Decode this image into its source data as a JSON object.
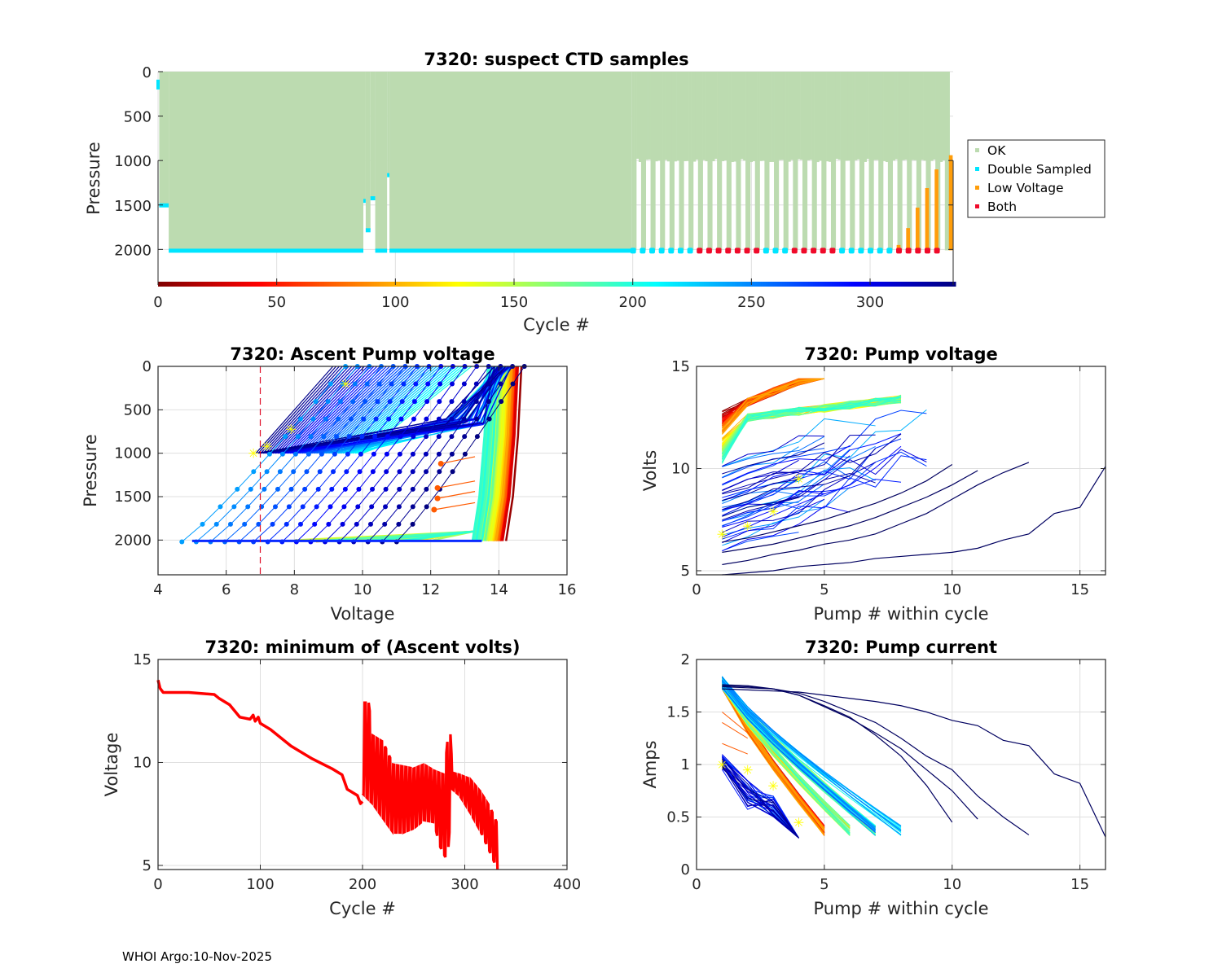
{
  "footer": "WHOI Argo:10-Nov-2025",
  "chart_data": [
    {
      "id": "suspect-ctd",
      "type": "scatter",
      "title": "7320: suspect CTD samples",
      "xlabel": "Cycle #",
      "ylabel": "Pressure",
      "xlim": [
        0,
        335
      ],
      "ylim": [
        2400,
        0
      ],
      "xticks": [
        0,
        50,
        100,
        150,
        200,
        250,
        300
      ],
      "yticks": [
        0,
        500,
        1000,
        1500,
        2000
      ],
      "grid": true,
      "legend": {
        "placement": "outside-right",
        "entries": [
          {
            "label": "OK",
            "color": "#bcdbb0"
          },
          {
            "label": "Double Sampled",
            "color": "#00e5ff"
          },
          {
            "label": "Low Voltage",
            "color": "#ff9d0a"
          },
          {
            "label": "Both",
            "color": "#f00a2a"
          }
        ]
      },
      "profile_depth_segments": [
        {
          "cycles": [
            1,
            4
          ],
          "max_pressure": 1500
        },
        {
          "cycles": [
            5,
            86
          ],
          "max_pressure": 2010
        },
        {
          "cycles": [
            87,
            87
          ],
          "max_pressure": 1450
        },
        {
          "cycles": [
            88,
            89
          ],
          "max_pressure": 1780
        },
        {
          "cycles": [
            90,
            91
          ],
          "max_pressure": 1420
        },
        {
          "cycles": [
            92,
            96
          ],
          "max_pressure": 2010
        },
        {
          "cycles": [
            97,
            97
          ],
          "max_pressure": 1160
        },
        {
          "cycles": [
            98,
            199
          ],
          "max_pressure": 2010
        }
      ],
      "alternating_profiles": {
        "start_cycle": 200,
        "end_cycle": 333,
        "period": 4,
        "shallow_pressure": 1000,
        "deep_pressure": 2010
      },
      "flagged_bottom_points": [
        {
          "cycle": 200,
          "flag": "Double Sampled"
        },
        {
          "cycle": 204,
          "flag": "Double Sampled"
        },
        {
          "cycle": 208,
          "flag": "Double Sampled"
        },
        {
          "cycle": 212,
          "flag": "Double Sampled"
        },
        {
          "cycle": 216,
          "flag": "Double Sampled"
        },
        {
          "cycle": 220,
          "flag": "Double Sampled"
        },
        {
          "cycle": 224,
          "flag": "Double Sampled"
        },
        {
          "cycle": 228,
          "flag": "Both"
        },
        {
          "cycle": 232,
          "flag": "Both"
        },
        {
          "cycle": 236,
          "flag": "Both"
        },
        {
          "cycle": 240,
          "flag": "Both"
        },
        {
          "cycle": 244,
          "flag": "Both"
        },
        {
          "cycle": 248,
          "flag": "Both"
        },
        {
          "cycle": 252,
          "flag": "Both"
        },
        {
          "cycle": 256,
          "flag": "Double Sampled"
        },
        {
          "cycle": 260,
          "flag": "Double Sampled"
        },
        {
          "cycle": 264,
          "flag": "Double Sampled"
        },
        {
          "cycle": 268,
          "flag": "Both"
        },
        {
          "cycle": 272,
          "flag": "Both"
        },
        {
          "cycle": 276,
          "flag": "Both"
        },
        {
          "cycle": 280,
          "flag": "Both"
        },
        {
          "cycle": 284,
          "flag": "Both"
        },
        {
          "cycle": 288,
          "flag": "Double Sampled"
        },
        {
          "cycle": 292,
          "flag": "Double Sampled"
        },
        {
          "cycle": 296,
          "flag": "Double Sampled"
        },
        {
          "cycle": 300,
          "flag": "Double Sampled"
        },
        {
          "cycle": 304,
          "flag": "Double Sampled"
        },
        {
          "cycle": 308,
          "flag": "Double Sampled"
        },
        {
          "cycle": 312,
          "flag": "Both"
        },
        {
          "cycle": 316,
          "flag": "Both"
        },
        {
          "cycle": 320,
          "flag": "Both"
        },
        {
          "cycle": 324,
          "flag": "Both"
        },
        {
          "cycle": 328,
          "flag": "Both"
        }
      ],
      "low_voltage_columns": [
        {
          "cycle": 312,
          "top_pressure": 1950
        },
        {
          "cycle": 316,
          "top_pressure": 1760
        },
        {
          "cycle": 320,
          "top_pressure": 1530
        },
        {
          "cycle": 324,
          "top_pressure": 1310
        },
        {
          "cycle": 328,
          "top_pressure": 1100
        },
        {
          "cycle": 334,
          "top_pressure": 940
        }
      ],
      "colorbar": {
        "range": [
          0,
          335
        ],
        "colormap": "jet"
      }
    },
    {
      "id": "ascent-pump-voltage",
      "type": "line",
      "title": "7320: Ascent Pump voltage",
      "xlabel": "Voltage",
      "ylabel": "Pressure",
      "xlim": [
        4,
        16
      ],
      "ylim": [
        2400,
        0
      ],
      "xticks": [
        4,
        6,
        8,
        10,
        12,
        14,
        16
      ],
      "yticks": [
        0,
        500,
        1000,
        1500,
        2000
      ],
      "grid": true,
      "threshold_line": {
        "x": 7,
        "color": "#e0102a",
        "style": "dashed"
      },
      "series_description": "One ascent per cycle, colored by cycle number (jet colormap); early cycles near 14.3 V, late cycles degrade toward 4.7 V",
      "highlighted_points": [
        {
          "x": 9.5,
          "y": 200
        },
        {
          "x": 7.9,
          "y": 720
        },
        {
          "x": 7.2,
          "y": 920
        },
        {
          "x": 6.8,
          "y": 1000
        }
      ]
    },
    {
      "id": "pump-voltage",
      "type": "line",
      "title": "7320: Pump voltage",
      "xlabel": "Pump # within cycle",
      "ylabel": "Volts",
      "xlim": [
        0,
        16
      ],
      "ylim": [
        4.8,
        15
      ],
      "xticks": [
        0,
        5,
        10,
        15
      ],
      "yticks": [
        5,
        10,
        15
      ],
      "grid": true,
      "example_late_series": [
        {
          "x": [
            1,
            2,
            3,
            4,
            5,
            6,
            7,
            8,
            9,
            10,
            11,
            12,
            13,
            14,
            15,
            16
          ],
          "y": [
            4.8,
            4.9,
            5.0,
            5.2,
            5.3,
            5.4,
            5.6,
            5.7,
            5.8,
            5.9,
            6.1,
            6.5,
            6.8,
            7.8,
            8.1,
            10.1
          ]
        },
        {
          "x": [
            1,
            2,
            3,
            4,
            5,
            6,
            7,
            8,
            9,
            10,
            11,
            12,
            13
          ],
          "y": [
            5.3,
            5.5,
            5.8,
            6.0,
            6.3,
            6.5,
            6.8,
            7.3,
            7.8,
            8.5,
            9.2,
            9.8,
            10.3
          ]
        },
        {
          "x": [
            1,
            2,
            3,
            4,
            5,
            6,
            7,
            8,
            9,
            10,
            11
          ],
          "y": [
            5.9,
            6.1,
            6.3,
            6.6,
            6.9,
            7.2,
            7.6,
            8.1,
            8.6,
            9.2,
            9.9
          ]
        },
        {
          "x": [
            1,
            2,
            3,
            4,
            5,
            6,
            7,
            8,
            9,
            10
          ],
          "y": [
            6.4,
            6.6,
            6.9,
            7.2,
            7.5,
            7.9,
            8.3,
            8.8,
            9.4,
            10.2
          ]
        }
      ],
      "highlighted_points": [
        {
          "x": 1,
          "y": 6.8
        },
        {
          "x": 2,
          "y": 7.2
        },
        {
          "x": 3,
          "y": 7.9
        },
        {
          "x": 4,
          "y": 9.5
        }
      ]
    },
    {
      "id": "min-ascent-volts",
      "type": "line",
      "title": "7320: minimum of (Ascent volts)",
      "xlabel": "Cycle #",
      "ylabel": "Voltage",
      "xlim": [
        0,
        400
      ],
      "ylim": [
        4.8,
        15
      ],
      "xticks": [
        0,
        100,
        200,
        300,
        400
      ],
      "yticks": [
        5,
        10,
        15
      ],
      "grid": true,
      "color": "#ff0000",
      "envelope": {
        "x": [
          0,
          2,
          5,
          10,
          30,
          55,
          60,
          70,
          80,
          90,
          93,
          95,
          98,
          100,
          110,
          130,
          150,
          170,
          180,
          185,
          195,
          198,
          200
        ],
        "y": [
          14.0,
          13.6,
          13.4,
          13.4,
          13.4,
          13.3,
          13.1,
          12.8,
          12.2,
          12.1,
          12.3,
          12.0,
          12.2,
          11.9,
          11.6,
          10.8,
          10.2,
          9.7,
          9.4,
          8.7,
          8.4,
          8.0,
          8.1
        ]
      },
      "oscillating_upper": {
        "x": [
          200,
          202,
          206,
          210,
          220,
          230,
          240,
          250,
          260,
          270,
          280,
          283,
          285,
          288,
          295,
          305,
          315,
          325,
          332
        ],
        "y": [
          9.5,
          12.9,
          12.9,
          11.3,
          11.0,
          9.9,
          9.8,
          9.7,
          9.9,
          9.6,
          9.4,
          11.0,
          12.3,
          9.5,
          9.4,
          9.2,
          8.6,
          7.8,
          7.0
        ]
      },
      "oscillating_lower": {
        "x": [
          200,
          210,
          220,
          230,
          240,
          250,
          260,
          270,
          275,
          280,
          283,
          288,
          295,
          305,
          315,
          325,
          332
        ],
        "y": [
          8.5,
          8.0,
          7.3,
          6.6,
          6.6,
          6.8,
          7.2,
          7.1,
          6.0,
          5.5,
          5.2,
          8.7,
          8.4,
          7.6,
          6.7,
          5.6,
          4.8
        ]
      }
    },
    {
      "id": "pump-current",
      "type": "line",
      "title": "7320: Pump current",
      "xlabel": "Pump # within cycle",
      "ylabel": "Amps",
      "xlim": [
        0,
        16
      ],
      "ylim": [
        0,
        2
      ],
      "xticks": [
        0,
        5,
        10,
        15
      ],
      "yticks": [
        0,
        0.5,
        1,
        1.5,
        2
      ],
      "grid": true,
      "example_late_series": [
        {
          "x": [
            1,
            2,
            3,
            4,
            5,
            6,
            7,
            8,
            9,
            10,
            11,
            12,
            13,
            14,
            15,
            16
          ],
          "y": [
            1.72,
            1.71,
            1.7,
            1.69,
            1.66,
            1.63,
            1.6,
            1.56,
            1.5,
            1.42,
            1.37,
            1.23,
            1.18,
            0.91,
            0.82,
            0.31
          ]
        },
        {
          "x": [
            1,
            2,
            3,
            4,
            5,
            6,
            7,
            8,
            9,
            10,
            11,
            12,
            13
          ],
          "y": [
            1.74,
            1.73,
            1.72,
            1.68,
            1.6,
            1.5,
            1.4,
            1.25,
            1.08,
            0.95,
            0.7,
            0.5,
            0.33
          ]
        },
        {
          "x": [
            1,
            2,
            3,
            4,
            5,
            6,
            7,
            8,
            9,
            10,
            11
          ],
          "y": [
            1.75,
            1.74,
            1.72,
            1.66,
            1.55,
            1.44,
            1.3,
            1.15,
            0.95,
            0.75,
            0.48
          ]
        },
        {
          "x": [
            1,
            2,
            3,
            4,
            5,
            6,
            7,
            8,
            9,
            10
          ],
          "y": [
            1.76,
            1.75,
            1.72,
            1.66,
            1.56,
            1.45,
            1.28,
            1.08,
            0.8,
            0.45
          ]
        }
      ],
      "highlighted_points": [
        {
          "x": 1,
          "y": 1.0
        },
        {
          "x": 2,
          "y": 0.95
        },
        {
          "x": 3,
          "y": 0.8
        },
        {
          "x": 4,
          "y": 0.45
        }
      ]
    }
  ]
}
